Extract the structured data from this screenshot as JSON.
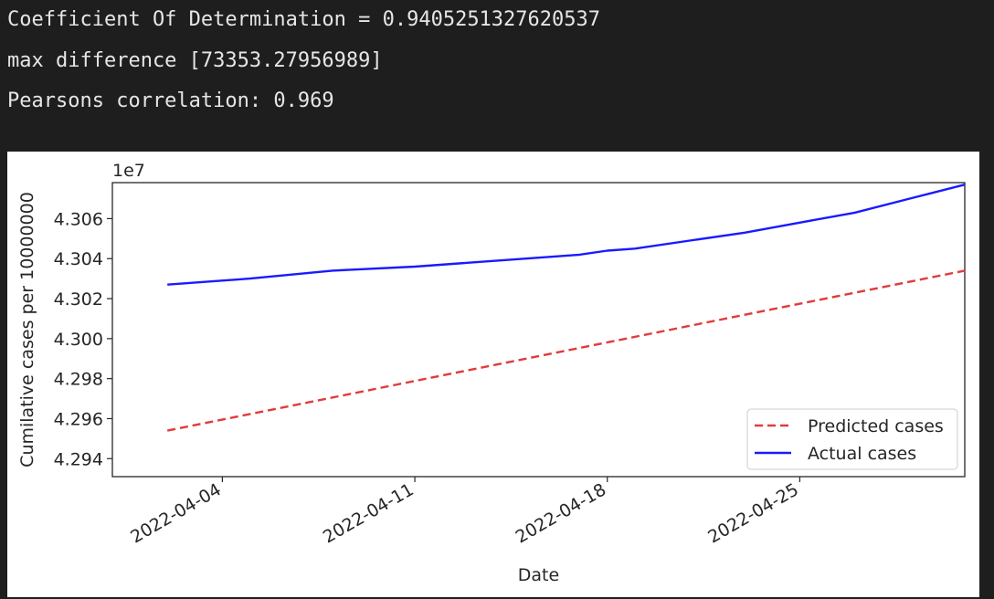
{
  "console": {
    "line1": "Coefficient Of Determination = 0.9405251327620537",
    "line2": "max difference [73353.27956989]",
    "line3": "Pearsons correlation: 0.969"
  },
  "chart_data": {
    "type": "line",
    "title": "",
    "xlabel": "Date",
    "ylabel": "Cumilative cases per 10000000",
    "y_offset_text": "1e7",
    "y_multiplier": 10000000,
    "ylim": [
      4.2931,
      4.3078
    ],
    "xlim": [
      "2022-03-31",
      "2022-05-01"
    ],
    "y_ticks": [
      4.294,
      4.296,
      4.298,
      4.3,
      4.302,
      4.304,
      4.306
    ],
    "y_tick_labels": [
      "4.294",
      "4.296",
      "4.298",
      "4.300",
      "4.302",
      "4.304",
      "4.306"
    ],
    "x_ticks": [
      "2022-04-04",
      "2022-04-11",
      "2022-04-18",
      "2022-04-25",
      "2022-05-02"
    ],
    "x_tick_labels": [
      "2022-04-04",
      "2022-04-11",
      "2022-04-18",
      "2022-04-25"
    ],
    "grid": false,
    "legend_position": "lower-right",
    "series": [
      {
        "name": "Predicted cases",
        "color": "#e03b3b",
        "style": "dashed",
        "points": [
          [
            "2022-04-02",
            4.2954
          ],
          [
            "2022-05-01",
            4.3034
          ]
        ]
      },
      {
        "name": "Actual cases",
        "color": "#1a1aff",
        "style": "solid",
        "points": [
          [
            "2022-04-02",
            4.3027
          ],
          [
            "2022-04-05",
            4.303
          ],
          [
            "2022-04-08",
            4.3034
          ],
          [
            "2022-04-11",
            4.3036
          ],
          [
            "2022-04-14",
            4.3039
          ],
          [
            "2022-04-17",
            4.3042
          ],
          [
            "2022-04-18",
            4.3044
          ],
          [
            "2022-04-19",
            4.3045
          ],
          [
            "2022-04-21",
            4.3049
          ],
          [
            "2022-04-23",
            4.3053
          ],
          [
            "2022-04-25",
            4.3058
          ],
          [
            "2022-04-27",
            4.3063
          ],
          [
            "2022-04-29",
            4.307
          ],
          [
            "2022-05-01",
            4.3077
          ]
        ]
      }
    ]
  }
}
